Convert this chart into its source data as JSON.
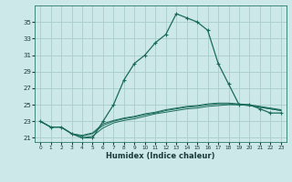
{
  "title": "",
  "xlabel": "Humidex (Indice chaleur)",
  "bg_color": "#cce8e8",
  "grid_color": "#aacccc",
  "line_color": "#1a6b5a",
  "x": [
    0,
    1,
    2,
    3,
    4,
    5,
    6,
    7,
    8,
    9,
    10,
    11,
    12,
    13,
    14,
    15,
    16,
    17,
    18,
    19,
    20,
    21,
    22,
    23
  ],
  "line_main": [
    23.0,
    22.3,
    22.3,
    21.5,
    21.0,
    21.0,
    23.0,
    25.0,
    28.0,
    30.0,
    31.0,
    32.5,
    33.5,
    36.0,
    35.5,
    35.0,
    34.0,
    30.0,
    27.5,
    25.0,
    25.0,
    24.5,
    24.0,
    24.0
  ],
  "line_a": [
    23.0,
    22.3,
    22.3,
    21.5,
    21.0,
    21.2,
    22.2,
    22.8,
    23.1,
    23.3,
    23.6,
    23.9,
    24.1,
    24.3,
    24.5,
    24.6,
    24.8,
    24.9,
    25.0,
    25.0,
    24.9,
    24.7,
    24.5,
    24.3
  ],
  "line_b": [
    23.0,
    22.3,
    22.3,
    21.5,
    21.2,
    21.5,
    22.5,
    23.0,
    23.3,
    23.5,
    23.8,
    24.0,
    24.3,
    24.5,
    24.7,
    24.8,
    25.0,
    25.1,
    25.1,
    25.0,
    24.9,
    24.7,
    24.5,
    24.3
  ],
  "line_c": [
    23.0,
    22.3,
    22.3,
    21.5,
    21.3,
    21.6,
    22.7,
    23.1,
    23.4,
    23.6,
    23.9,
    24.1,
    24.4,
    24.6,
    24.8,
    24.9,
    25.1,
    25.2,
    25.2,
    25.1,
    25.0,
    24.8,
    24.6,
    24.4
  ],
  "ylim": [
    20.5,
    37.0
  ],
  "xlim": [
    -0.5,
    23.5
  ],
  "yticks": [
    21,
    23,
    25,
    27,
    29,
    31,
    33,
    35
  ],
  "xticks": [
    0,
    1,
    2,
    3,
    4,
    5,
    6,
    7,
    8,
    9,
    10,
    11,
    12,
    13,
    14,
    15,
    16,
    17,
    18,
    19,
    20,
    21,
    22,
    23
  ]
}
